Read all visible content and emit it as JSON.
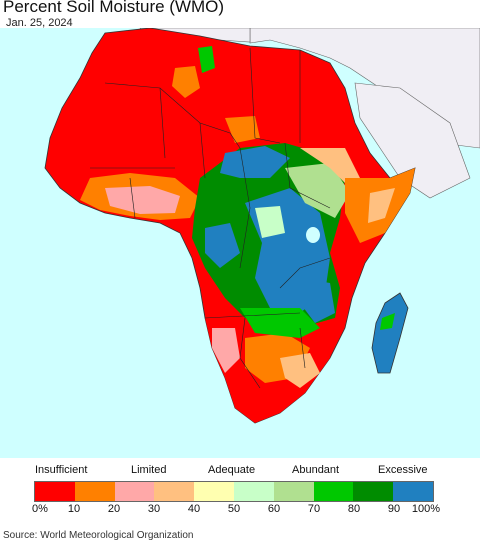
{
  "header": {
    "title": "Percent Soil Moisture (WMO)",
    "date": "Jan. 25, 2024"
  },
  "legend": {
    "categories": [
      {
        "label": "Insufficient"
      },
      {
        "label": "Limited"
      },
      {
        "label": "Adequate"
      },
      {
        "label": "Abundant"
      },
      {
        "label": "Excessive"
      }
    ],
    "colors": [
      "#ff0000",
      "#ff8000",
      "#ffa8a8",
      "#ffc080",
      "#ffffb0",
      "#c8ffc8",
      "#b0e090",
      "#00c800",
      "#008c00",
      "#2080c0"
    ],
    "ticks": [
      "0%",
      "10",
      "20",
      "30",
      "40",
      "50",
      "60",
      "70",
      "80",
      "90",
      "100%"
    ]
  },
  "map": {
    "ocean_color": "#cfffff",
    "outside_region_color": "#f0eef4"
  },
  "footer": {
    "source": "Source: World Meteorological Organization"
  }
}
